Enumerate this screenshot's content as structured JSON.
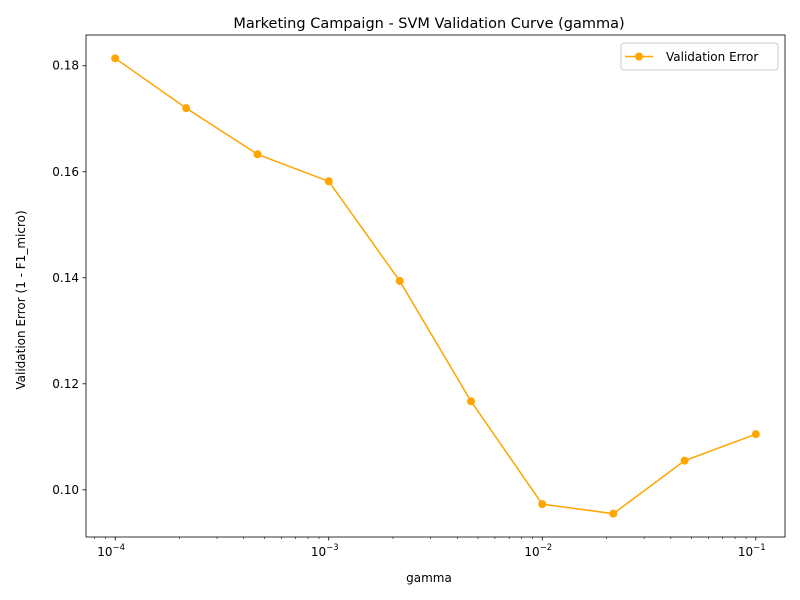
{
  "chart_data": {
    "type": "line",
    "title": "Marketing Campaign - SVM Validation Curve (gamma)",
    "xlabel": "gamma",
    "ylabel": "Validation Error (1 - F1_micro)",
    "xscale": "log",
    "xlim": [
      7.3e-05,
      0.137
    ],
    "ylim": [
      0.0911,
      0.1858
    ],
    "grid": false,
    "legend_position": "top-right",
    "x_ticks": [
      {
        "value": 0.0001,
        "base": "10",
        "exp": "−4"
      },
      {
        "value": 0.001,
        "base": "10",
        "exp": "−3"
      },
      {
        "value": 0.01,
        "base": "10",
        "exp": "−2"
      },
      {
        "value": 0.1,
        "base": "10",
        "exp": "−1"
      }
    ],
    "y_ticks": [
      {
        "value": 0.1,
        "label": "0.10"
      },
      {
        "value": 0.12,
        "label": "0.12"
      },
      {
        "value": 0.14,
        "label": "0.14"
      },
      {
        "value": 0.16,
        "label": "0.16"
      },
      {
        "value": 0.18,
        "label": "0.18"
      }
    ],
    "series": [
      {
        "name": "Validation Error",
        "color": "#ffa500",
        "marker": "circle",
        "x": [
          0.0001,
          0.000215,
          0.000464,
          0.001,
          0.00215,
          0.00464,
          0.01,
          0.0215,
          0.0464,
          0.1
        ],
        "y": [
          0.1814,
          0.172,
          0.1633,
          0.1582,
          0.1394,
          0.1167,
          0.0973,
          0.0955,
          0.1055,
          0.1105
        ]
      }
    ]
  }
}
